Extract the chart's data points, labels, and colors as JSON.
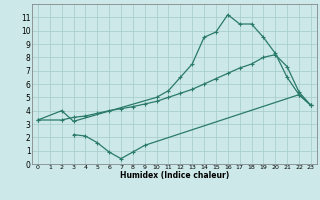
{
  "xlabel": "Humidex (Indice chaleur)",
  "bg_color": "#cce8e8",
  "grid_color": "#aacfcf",
  "line_color": "#2a7a6a",
  "xlim": [
    -0.5,
    23.5
  ],
  "ylim": [
    0,
    12
  ],
  "xticks": [
    0,
    1,
    2,
    3,
    4,
    5,
    6,
    7,
    8,
    9,
    10,
    11,
    12,
    13,
    14,
    15,
    16,
    17,
    18,
    19,
    20,
    21,
    22,
    23
  ],
  "yticks": [
    0,
    1,
    2,
    3,
    4,
    5,
    6,
    7,
    8,
    9,
    10,
    11
  ],
  "line1_x": [
    0,
    2,
    3,
    10,
    11,
    12,
    13,
    14,
    15,
    16,
    17,
    18,
    19,
    20,
    21,
    22,
    23
  ],
  "line1_y": [
    3.3,
    4.0,
    3.2,
    5.0,
    5.5,
    6.5,
    7.5,
    9.5,
    9.9,
    11.2,
    10.5,
    10.5,
    9.5,
    8.3,
    6.5,
    5.2,
    4.4
  ],
  "line2_x": [
    0,
    2,
    3,
    4,
    5,
    6,
    7,
    8,
    9,
    10,
    11,
    12,
    13,
    14,
    15,
    16,
    17,
    18,
    19,
    20,
    21,
    22,
    23
  ],
  "line2_y": [
    3.3,
    3.3,
    3.5,
    3.6,
    3.8,
    4.0,
    4.15,
    4.3,
    4.5,
    4.7,
    5.0,
    5.3,
    5.6,
    6.0,
    6.4,
    6.8,
    7.2,
    7.5,
    8.0,
    8.2,
    7.3,
    5.4,
    4.4
  ],
  "line3_x": [
    3,
    4,
    5,
    6,
    7,
    8,
    9,
    22,
    23
  ],
  "line3_y": [
    2.2,
    2.1,
    1.6,
    0.9,
    0.4,
    0.9,
    1.4,
    5.2,
    4.4
  ]
}
